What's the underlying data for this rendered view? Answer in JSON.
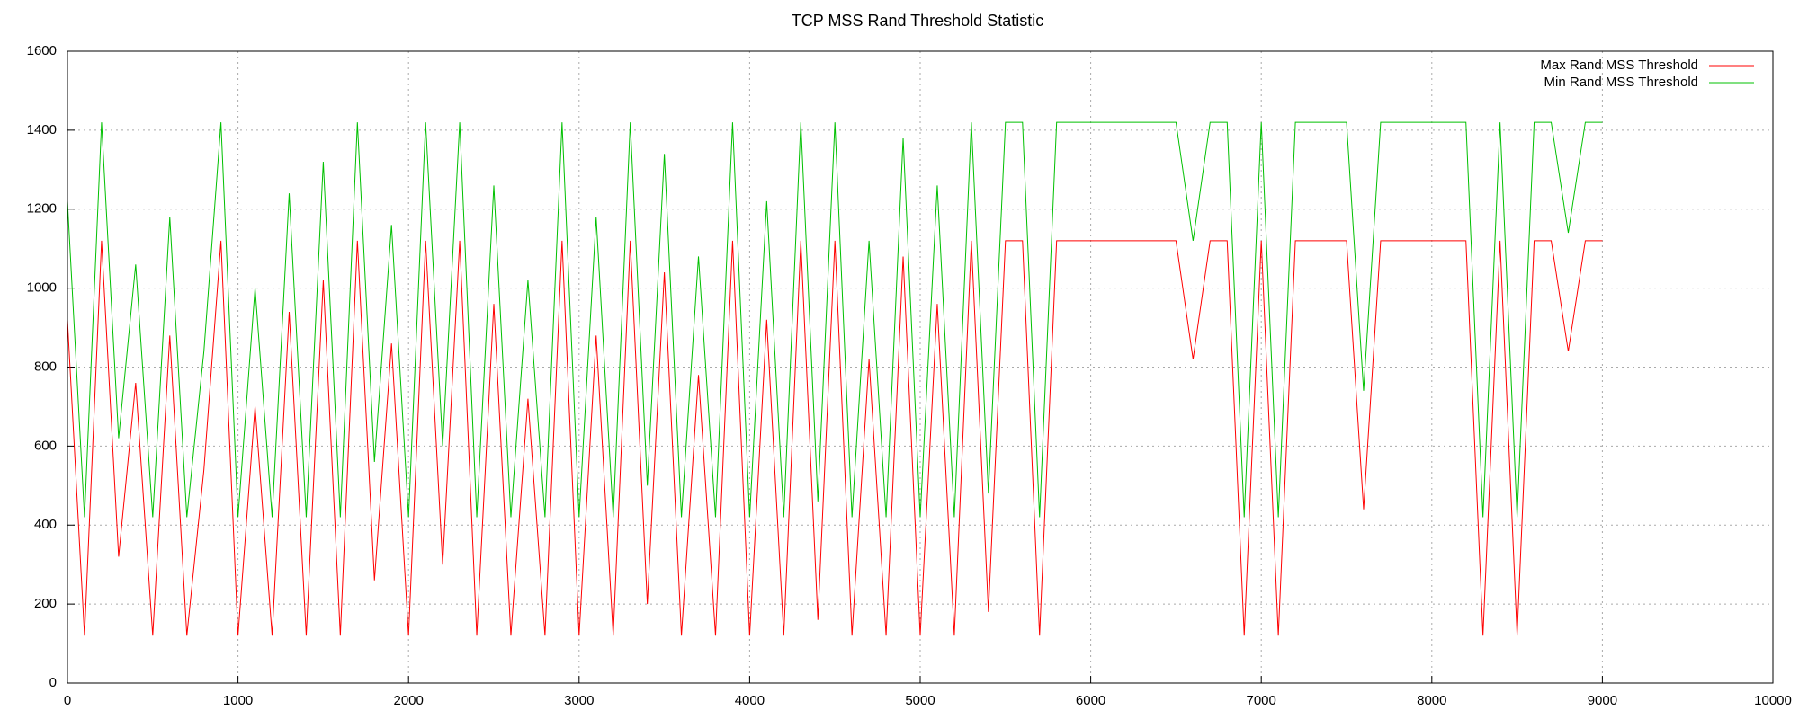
{
  "chart_data": {
    "type": "line",
    "title": "TCP MSS Rand Threshold Statistic",
    "x": [
      0,
      100,
      200,
      300,
      400,
      500,
      600,
      700,
      800,
      900,
      1000,
      1100,
      1200,
      1300,
      1400,
      1500,
      1600,
      1700,
      1800,
      1900,
      2000,
      2100,
      2200,
      2300,
      2400,
      2500,
      2600,
      2700,
      2800,
      2900,
      3000,
      3100,
      3200,
      3300,
      3400,
      3500,
      3600,
      3700,
      3800,
      3900,
      4000,
      4100,
      4200,
      4300,
      4400,
      4500,
      4600,
      4700,
      4800,
      4900,
      5000,
      5100,
      5200,
      5300,
      5400,
      5500,
      5600,
      5700,
      5800,
      5900,
      6000,
      6100,
      6200,
      6300,
      6400,
      6500,
      6600,
      6700,
      6800,
      6900,
      7000,
      7100,
      7200,
      7300,
      7400,
      7500,
      7600,
      7700,
      7800,
      7900,
      8000,
      8100,
      8200,
      8300,
      8400,
      8500,
      8600,
      8700,
      8800,
      8900,
      9000
    ],
    "series": [
      {
        "name": "Max Rand MSS Threshold",
        "color": "#ff0000",
        "values": [
          920,
          120,
          1120,
          320,
          760,
          120,
          880,
          120,
          540,
          1120,
          120,
          700,
          120,
          940,
          120,
          1020,
          120,
          1120,
          260,
          860,
          120,
          1120,
          300,
          1120,
          120,
          960,
          120,
          720,
          120,
          1120,
          120,
          880,
          120,
          1120,
          200,
          1040,
          120,
          780,
          120,
          1120,
          120,
          920,
          120,
          1120,
          160,
          1120,
          120,
          820,
          120,
          1080,
          120,
          960,
          120,
          1120,
          180,
          1120,
          1120,
          120,
          1120,
          1120,
          1120,
          1120,
          1120,
          1120,
          1120,
          1120,
          820,
          1120,
          1120,
          120,
          1120,
          120,
          1120,
          1120,
          1120,
          1120,
          440,
          1120,
          1120,
          1120,
          1120,
          1120,
          1120,
          120,
          1120,
          120,
          1120,
          1120,
          840,
          1120,
          1120
        ]
      },
      {
        "name": "Min Rand MSS Threshold",
        "color": "#00c000",
        "values": [
          1220,
          420,
          1420,
          620,
          1060,
          420,
          1180,
          420,
          840,
          1420,
          420,
          1000,
          420,
          1240,
          420,
          1320,
          420,
          1420,
          560,
          1160,
          420,
          1420,
          600,
          1420,
          420,
          1260,
          420,
          1020,
          420,
          1420,
          420,
          1180,
          420,
          1420,
          500,
          1340,
          420,
          1080,
          420,
          1420,
          420,
          1220,
          420,
          1420,
          460,
          1420,
          420,
          1120,
          420,
          1380,
          420,
          1260,
          420,
          1420,
          480,
          1420,
          1420,
          420,
          1420,
          1420,
          1420,
          1420,
          1420,
          1420,
          1420,
          1420,
          1120,
          1420,
          1420,
          420,
          1420,
          420,
          1420,
          1420,
          1420,
          1420,
          740,
          1420,
          1420,
          1420,
          1420,
          1420,
          1420,
          420,
          1420,
          420,
          1420,
          1420,
          1140,
          1420,
          1420
        ]
      }
    ],
    "xlim": [
      0,
      10000
    ],
    "xticks": [
      0,
      1000,
      2000,
      3000,
      4000,
      5000,
      6000,
      7000,
      8000,
      9000,
      10000
    ],
    "ylim": [
      0,
      1600
    ],
    "yticks": [
      0,
      200,
      400,
      600,
      800,
      1000,
      1200,
      1400,
      1600
    ],
    "grid": true,
    "legend": "top-right"
  }
}
